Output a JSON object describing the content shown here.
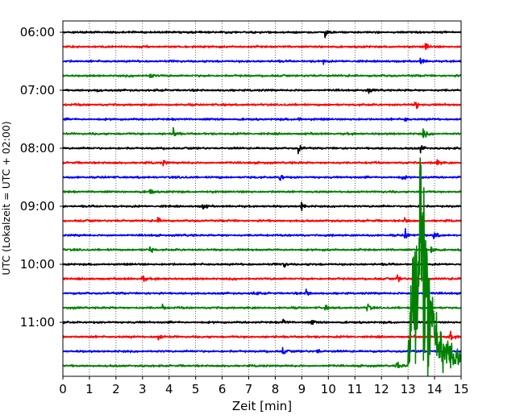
{
  "chart_data": {
    "type": "line",
    "title": "",
    "xlabel": "Zeit  [min]",
    "ylabel": "UTC (Lokalzeit = UTC + 02:00)",
    "xlim": [
      0,
      15
    ],
    "x_ticks": [
      0,
      1,
      2,
      3,
      4,
      5,
      6,
      7,
      8,
      9,
      10,
      11,
      12,
      13,
      14,
      15
    ],
    "x_tick_labels": [
      "0",
      "1",
      "2",
      "3",
      "4",
      "5",
      "6",
      "7",
      "8",
      "9",
      "10",
      "11",
      "12",
      "13",
      "14",
      "15"
    ],
    "y_tick_labels": [
      "06:00",
      "07:00",
      "08:00",
      "09:00",
      "10:00",
      "11:00"
    ],
    "grid": "vertical dotted",
    "trace_interval_min": 15,
    "trace_colors": [
      "#000000",
      "#ff0000",
      "#0000ff",
      "#008000"
    ],
    "traces": [
      {
        "start": "06:00",
        "color": "#000000",
        "events": [
          {
            "t": 9.9,
            "amp": 8
          },
          {
            "t": 2.5,
            "amp": 3
          }
        ]
      },
      {
        "start": "06:15",
        "color": "#ff0000",
        "events": [
          {
            "t": 13.7,
            "amp": 5
          }
        ]
      },
      {
        "start": "06:30",
        "color": "#0000ff",
        "events": [
          {
            "t": 9.8,
            "amp": 4
          },
          {
            "t": 13.5,
            "amp": 5
          }
        ]
      },
      {
        "start": "06:45",
        "color": "#008000",
        "events": [
          {
            "t": 3.3,
            "amp": 6
          }
        ]
      },
      {
        "start": "07:00",
        "color": "#000000",
        "events": [
          {
            "t": 11.5,
            "amp": 4
          },
          {
            "t": 1.3,
            "amp": 3
          }
        ]
      },
      {
        "start": "07:15",
        "color": "#ff0000",
        "events": [
          {
            "t": 13.3,
            "amp": 8
          }
        ]
      },
      {
        "start": "07:30",
        "color": "#0000ff",
        "events": [
          {
            "t": 8.9,
            "amp": 4
          },
          {
            "t": 12.9,
            "amp": 4
          }
        ]
      },
      {
        "start": "07:45",
        "color": "#008000",
        "events": [
          {
            "t": 4.2,
            "amp": 9
          },
          {
            "t": 13.6,
            "amp": 8
          }
        ]
      },
      {
        "start": "08:00",
        "color": "#000000",
        "events": [
          {
            "t": 8.9,
            "amp": 8
          },
          {
            "t": 13.5,
            "amp": 6
          }
        ]
      },
      {
        "start": "08:15",
        "color": "#ff0000",
        "events": [
          {
            "t": 3.8,
            "amp": 5
          },
          {
            "t": 14.1,
            "amp": 7
          }
        ]
      },
      {
        "start": "08:30",
        "color": "#0000ff",
        "events": [
          {
            "t": 8.2,
            "amp": 6
          },
          {
            "t": 12.8,
            "amp": 4
          }
        ]
      },
      {
        "start": "08:45",
        "color": "#008000",
        "events": [
          {
            "t": 3.3,
            "amp": 7
          }
        ]
      },
      {
        "start": "09:00",
        "color": "#000000",
        "events": [
          {
            "t": 5.3,
            "amp": 5
          },
          {
            "t": 9.0,
            "amp": 9
          }
        ]
      },
      {
        "start": "09:15",
        "color": "#ff0000",
        "events": [
          {
            "t": 3.6,
            "amp": 4
          },
          {
            "t": 12.9,
            "amp": 4
          }
        ]
      },
      {
        "start": "09:30",
        "color": "#0000ff",
        "events": [
          {
            "t": 12.9,
            "amp": 9
          },
          {
            "t": 14.0,
            "amp": 6
          }
        ]
      },
      {
        "start": "09:45",
        "color": "#008000",
        "events": [
          {
            "t": 3.3,
            "amp": 6
          },
          {
            "t": 13.9,
            "amp": 8
          }
        ]
      },
      {
        "start": "10:00",
        "color": "#000000",
        "events": [
          {
            "t": 8.3,
            "amp": 7
          }
        ]
      },
      {
        "start": "10:15",
        "color": "#ff0000",
        "events": [
          {
            "t": 3.0,
            "amp": 8
          },
          {
            "t": 12.6,
            "amp": 7
          }
        ]
      },
      {
        "start": "10:30",
        "color": "#0000ff",
        "events": [
          {
            "t": 9.2,
            "amp": 6
          },
          {
            "t": 7.2,
            "amp": 4
          }
        ]
      },
      {
        "start": "10:45",
        "color": "#008000",
        "events": [
          {
            "t": 3.8,
            "amp": 5
          },
          {
            "t": 11.5,
            "amp": 6
          },
          {
            "t": 9.9,
            "amp": 4
          }
        ]
      },
      {
        "start": "11:00",
        "color": "#000000",
        "events": [
          {
            "t": 8.3,
            "amp": 6
          },
          {
            "t": 9.4,
            "amp": 4
          }
        ]
      },
      {
        "start": "11:15",
        "color": "#ff0000",
        "events": [
          {
            "t": 3.6,
            "amp": 6
          },
          {
            "t": 14.6,
            "amp": 6
          }
        ]
      },
      {
        "start": "11:30",
        "color": "#0000ff",
        "events": [
          {
            "t": 8.3,
            "amp": 7
          },
          {
            "t": 9.6,
            "amp": 4
          }
        ]
      },
      {
        "start": "11:45",
        "color": "#008000",
        "events": [
          {
            "t": 12.6,
            "amp": 8
          }
        ],
        "large_event": {
          "start_min": 13.0,
          "peak_min": 13.5,
          "end_min": 15.0
        }
      }
    ]
  }
}
